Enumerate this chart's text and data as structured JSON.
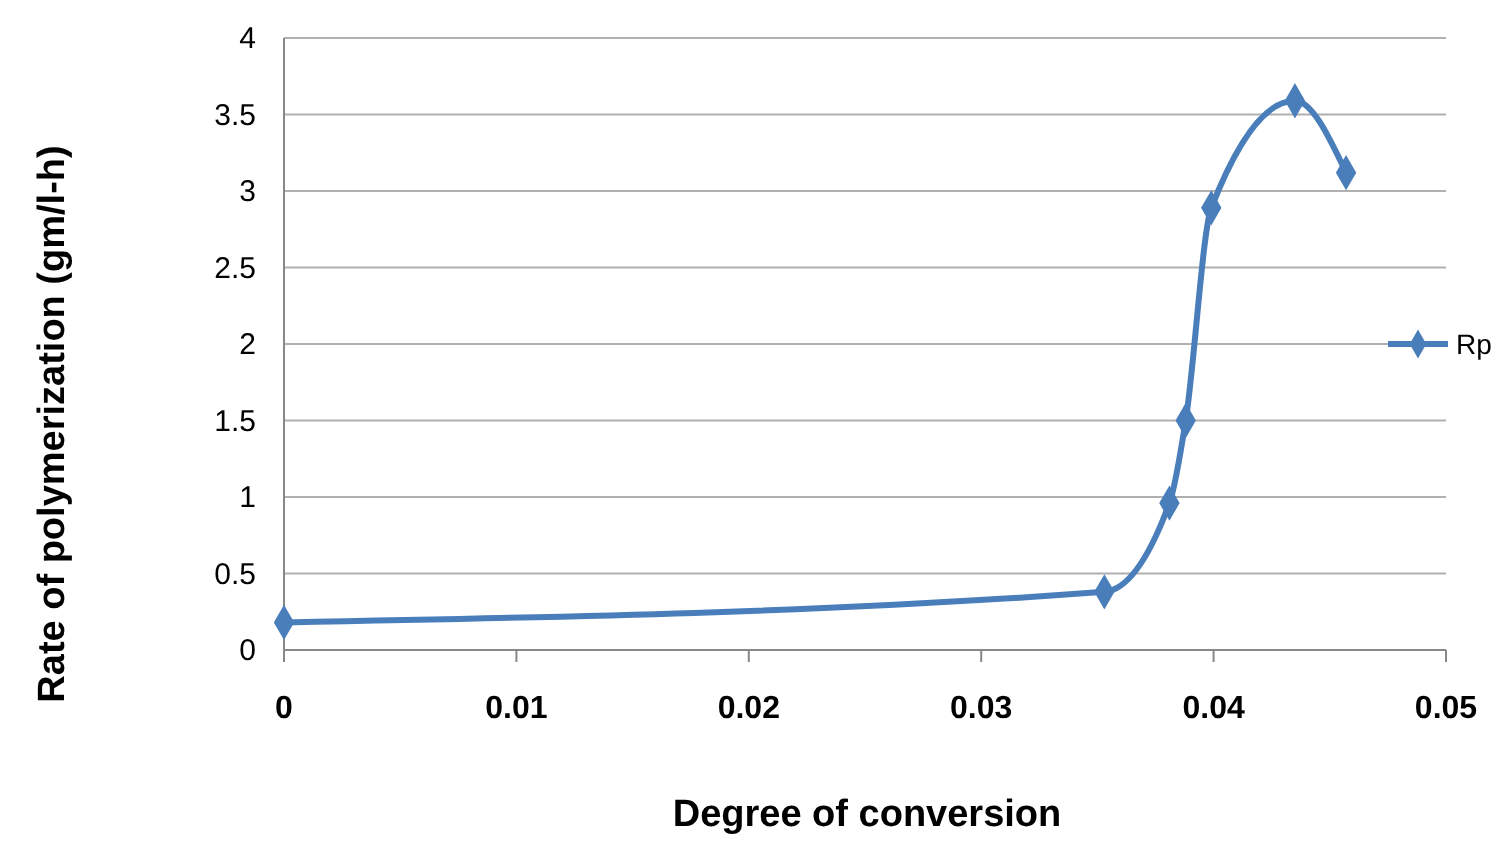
{
  "chart_data": {
    "type": "line",
    "xlabel": "Degree of conversion",
    "ylabel": "Rate of polymerization (gm/l-h)",
    "x": [
      0,
      0.0353,
      0.0381,
      0.0388,
      0.0399,
      0.0435,
      0.0457
    ],
    "series": [
      {
        "name": "Rp",
        "color": "#4a7ebb",
        "values": [
          0.18,
          0.38,
          0.96,
          1.5,
          2.89,
          3.59,
          3.12
        ]
      }
    ],
    "xlim": [
      0,
      0.05
    ],
    "xticks": [
      0,
      0.01,
      0.02,
      0.03,
      0.04,
      0.05
    ],
    "ylim": [
      0,
      4
    ],
    "yticks": [
      0,
      0.5,
      1,
      1.5,
      2,
      2.5,
      3,
      3.5,
      4
    ],
    "grid": "y",
    "legend": "right",
    "marker": "diamond",
    "line_style": "solid"
  }
}
